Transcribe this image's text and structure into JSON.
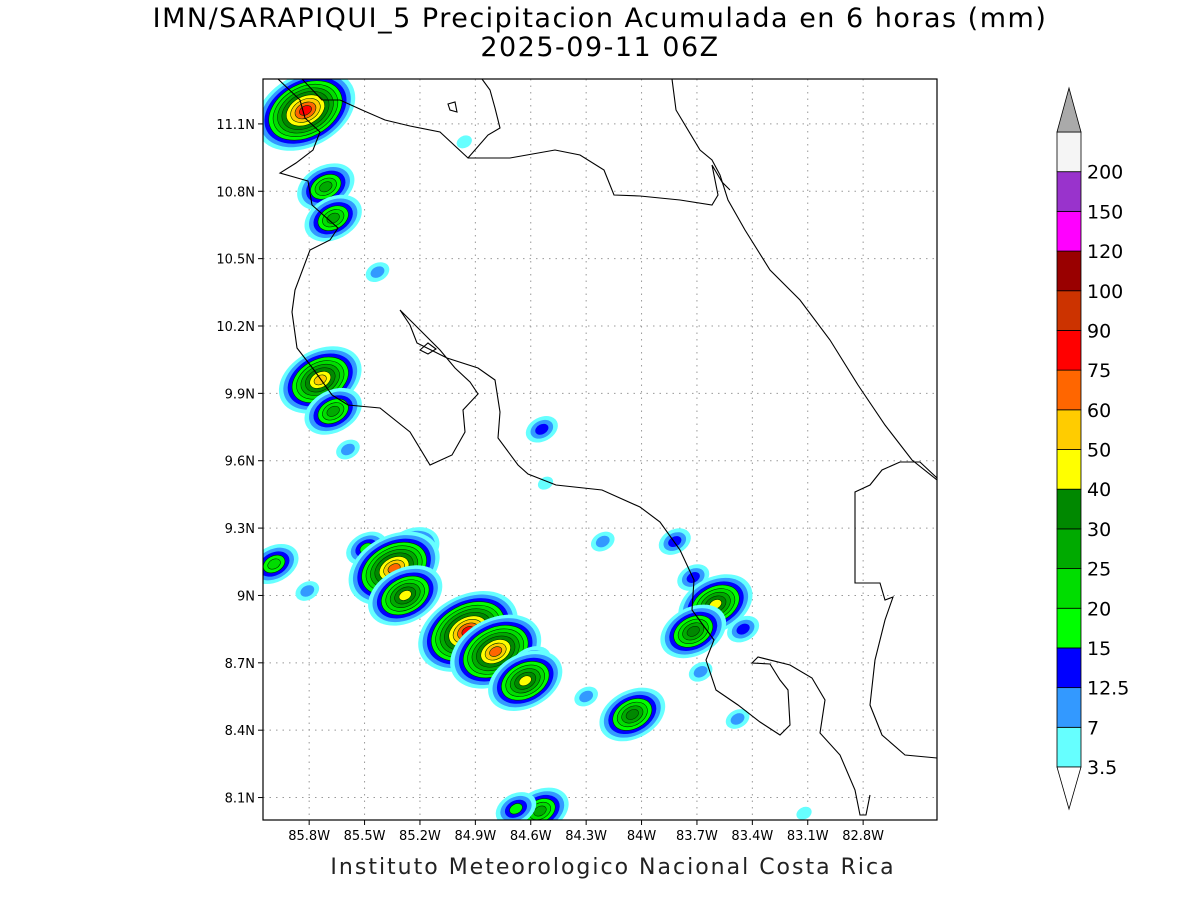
{
  "title_line1": "IMN/SARAPIQUI_5 Precipitacion Acumulada en 6 horas (mm)",
  "title_line2": "2025-09-11 06Z",
  "credit": "Instituto Meteorologico Nacional Costa Rica",
  "map": {
    "lon_range": [
      -86.05,
      -82.4
    ],
    "lat_range": [
      8.0,
      11.3
    ],
    "lon_ticks": [
      {
        "value": -85.8,
        "label": "85.8W"
      },
      {
        "value": -85.5,
        "label": "85.5W"
      },
      {
        "value": -85.2,
        "label": "85.2W"
      },
      {
        "value": -84.9,
        "label": "84.9W"
      },
      {
        "value": -84.6,
        "label": "84.6W"
      },
      {
        "value": -84.3,
        "label": "84.3W"
      },
      {
        "value": -84.0,
        "label": "84W"
      },
      {
        "value": -83.7,
        "label": "83.7W"
      },
      {
        "value": -83.4,
        "label": "83.4W"
      },
      {
        "value": -83.1,
        "label": "83.1W"
      },
      {
        "value": -82.8,
        "label": "82.8W"
      }
    ],
    "lat_ticks": [
      {
        "value": 11.1,
        "label": "11.1N"
      },
      {
        "value": 10.8,
        "label": "10.8N"
      },
      {
        "value": 10.5,
        "label": "10.5N"
      },
      {
        "value": 10.2,
        "label": "10.2N"
      },
      {
        "value": 9.9,
        "label": "9.9N"
      },
      {
        "value": 9.6,
        "label": "9.6N"
      },
      {
        "value": 9.3,
        "label": "9.3N"
      },
      {
        "value": 9.0,
        "label": "9N"
      },
      {
        "value": 8.7,
        "label": "8.7N"
      },
      {
        "value": 8.4,
        "label": "8.4N"
      },
      {
        "value": 8.1,
        "label": "8.1N"
      }
    ]
  },
  "colorbar": {
    "levels": [
      {
        "label": "3.5",
        "color": "#66ffff"
      },
      {
        "label": "7",
        "color": "#3399ff"
      },
      {
        "label": "12.5",
        "color": "#0000ff"
      },
      {
        "label": "15",
        "color": "#00ff00"
      },
      {
        "label": "20",
        "color": "#00dd00"
      },
      {
        "label": "25",
        "color": "#00aa00"
      },
      {
        "label": "30",
        "color": "#008800"
      },
      {
        "label": "40",
        "color": "#ffff00"
      },
      {
        "label": "50",
        "color": "#ffcc00"
      },
      {
        "label": "60",
        "color": "#ff6600"
      },
      {
        "label": "75",
        "color": "#ff0000"
      },
      {
        "label": "90",
        "color": "#cc3300"
      },
      {
        "label": "100",
        "color": "#990000"
      },
      {
        "label": "120",
        "color": "#ff00ff"
      },
      {
        "label": "150",
        "color": "#9933cc"
      },
      {
        "label": "200",
        "color": "#f5f5f5"
      }
    ],
    "over_color": "#aaaaaa",
    "under_color": "#ffffff"
  },
  "rain_cells": [
    {
      "lon": -85.82,
      "lat": 11.16,
      "max": 75
    },
    {
      "lon": -85.71,
      "lat": 10.82,
      "max": 25
    },
    {
      "lon": -85.67,
      "lat": 10.68,
      "max": 25
    },
    {
      "lon": -85.43,
      "lat": 10.44,
      "max": 7
    },
    {
      "lon": -84.96,
      "lat": 11.02,
      "max": 3.5
    },
    {
      "lon": -85.74,
      "lat": 9.96,
      "max": 50
    },
    {
      "lon": -85.67,
      "lat": 9.82,
      "max": 25
    },
    {
      "lon": -85.59,
      "lat": 9.65,
      "max": 7
    },
    {
      "lon": -84.54,
      "lat": 9.74,
      "max": 12.5
    },
    {
      "lon": -84.52,
      "lat": 9.5,
      "max": 3.5
    },
    {
      "lon": -85.99,
      "lat": 9.14,
      "max": 20
    },
    {
      "lon": -85.81,
      "lat": 9.02,
      "max": 7
    },
    {
      "lon": -85.49,
      "lat": 9.21,
      "max": 15
    },
    {
      "lon": -85.25,
      "lat": 9.2,
      "max": 25
    },
    {
      "lon": -85.34,
      "lat": 9.12,
      "max": 60
    },
    {
      "lon": -85.28,
      "lat": 9.0,
      "max": 40
    },
    {
      "lon": -84.94,
      "lat": 8.84,
      "max": 75
    },
    {
      "lon": -84.79,
      "lat": 8.75,
      "max": 60
    },
    {
      "lon": -84.6,
      "lat": 8.7,
      "max": 15
    },
    {
      "lon": -84.63,
      "lat": 8.62,
      "max": 40
    },
    {
      "lon": -84.3,
      "lat": 8.55,
      "max": 7
    },
    {
      "lon": -84.05,
      "lat": 8.47,
      "max": 30
    },
    {
      "lon": -84.21,
      "lat": 9.24,
      "max": 7
    },
    {
      "lon": -83.82,
      "lat": 9.24,
      "max": 12.5
    },
    {
      "lon": -83.72,
      "lat": 9.08,
      "max": 12.5
    },
    {
      "lon": -83.6,
      "lat": 8.96,
      "max": 40
    },
    {
      "lon": -83.72,
      "lat": 8.84,
      "max": 30
    },
    {
      "lon": -83.45,
      "lat": 8.85,
      "max": 12.5
    },
    {
      "lon": -83.68,
      "lat": 8.66,
      "max": 7
    },
    {
      "lon": -84.55,
      "lat": 8.04,
      "max": 25
    },
    {
      "lon": -84.68,
      "lat": 8.05,
      "max": 15
    },
    {
      "lon": -83.12,
      "lat": 8.03,
      "max": 3.5
    },
    {
      "lon": -83.48,
      "lat": 8.45,
      "max": 7
    }
  ]
}
